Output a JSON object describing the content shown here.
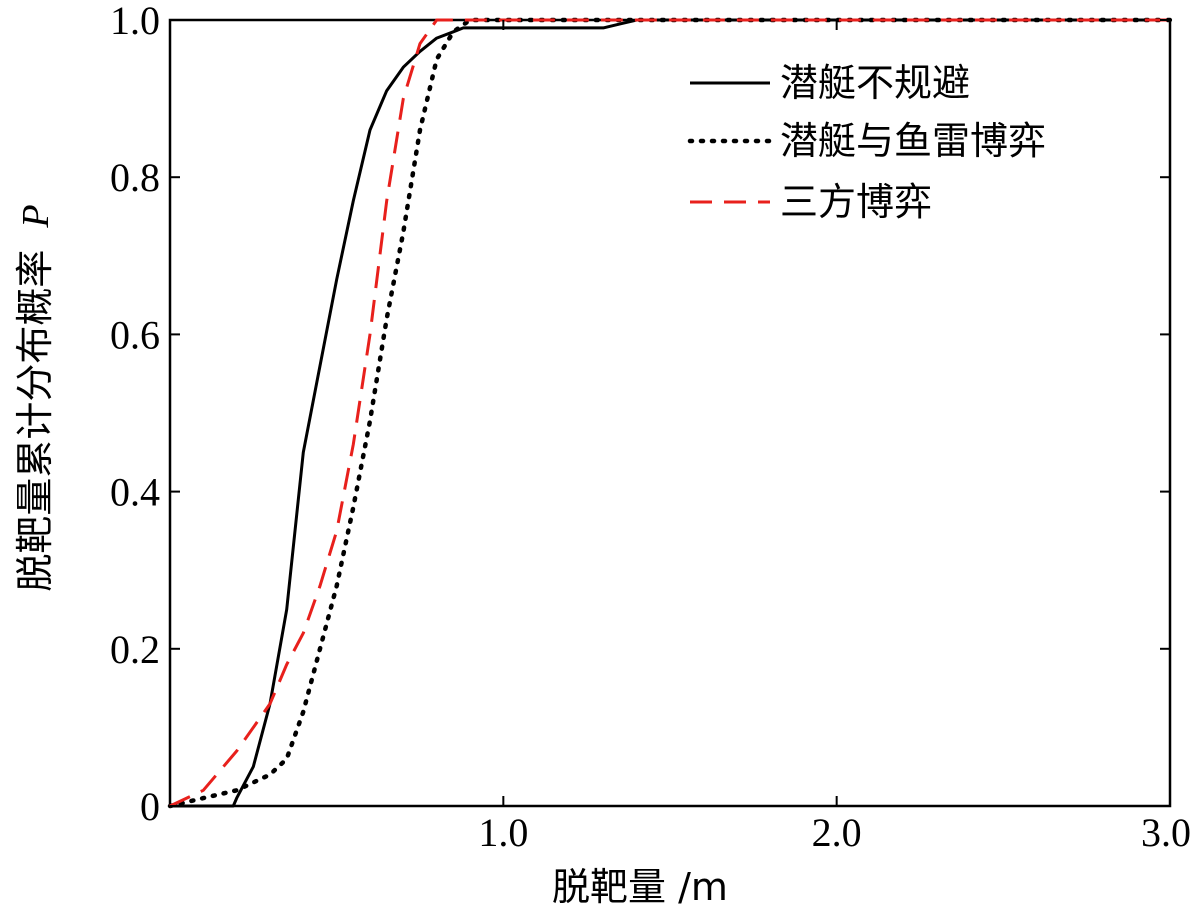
{
  "chart_data": {
    "type": "line",
    "title": "",
    "xlabel": "脱靶量 /m",
    "ylabel": "脱靶量累计分布概率",
    "ylabel_symbol": "P",
    "xlim": [
      0,
      3.0
    ],
    "ylim": [
      0,
      1.0
    ],
    "x_ticks": [
      1.0,
      2.0,
      3.0
    ],
    "x_tick_labels": [
      "1.0",
      "2.0",
      "3.0"
    ],
    "y_ticks": [
      0,
      0.2,
      0.4,
      0.6,
      0.8,
      1.0
    ],
    "y_tick_labels": [
      "0",
      "0.2",
      "0.4",
      "0.6",
      "0.8",
      "1.0"
    ],
    "grid": false,
    "legend_position": "top-right",
    "series": [
      {
        "name": "潜艇不规避",
        "color": "#000000",
        "style": "solid",
        "x": [
          0,
          0.19,
          0.2,
          0.25,
          0.3,
          0.35,
          0.4,
          0.45,
          0.5,
          0.55,
          0.6,
          0.65,
          0.7,
          0.75,
          0.8,
          0.85,
          0.88,
          0.9,
          0.95,
          1.0,
          1.05,
          1.1,
          1.2,
          1.3,
          1.35,
          1.4,
          3.0
        ],
        "y": [
          0,
          0,
          0.01,
          0.05,
          0.13,
          0.25,
          0.45,
          0.56,
          0.67,
          0.77,
          0.86,
          0.91,
          0.94,
          0.96,
          0.977,
          0.985,
          0.99,
          0.99,
          0.99,
          0.99,
          0.99,
          0.99,
          0.99,
          0.99,
          0.995,
          1.0,
          1.0
        ]
      },
      {
        "name": "潜艇与鱼雷博弈",
        "color": "#000000",
        "style": "dotted",
        "x": [
          0,
          0.1,
          0.2,
          0.3,
          0.35,
          0.4,
          0.45,
          0.5,
          0.55,
          0.6,
          0.65,
          0.7,
          0.75,
          0.8,
          0.85,
          0.9,
          0.95,
          1.0,
          1.05,
          1.1,
          1.2,
          1.3,
          1.35,
          3.0
        ],
        "y": [
          0,
          0.01,
          0.02,
          0.04,
          0.06,
          0.12,
          0.2,
          0.28,
          0.38,
          0.49,
          0.62,
          0.73,
          0.86,
          0.95,
          0.985,
          1.0,
          1.0,
          1.0,
          1.0,
          1.0,
          1.0,
          1.0,
          1.0,
          1.0
        ]
      },
      {
        "name": "三方博弈",
        "color": "#e8201c",
        "style": "dashed",
        "x": [
          0,
          0.1,
          0.2,
          0.3,
          0.35,
          0.4,
          0.45,
          0.5,
          0.55,
          0.6,
          0.65,
          0.7,
          0.75,
          0.8,
          0.85,
          0.88,
          0.9,
          0.95,
          1.0,
          1.1,
          1.2,
          1.3,
          1.35,
          3.0
        ],
        "y": [
          0,
          0.02,
          0.07,
          0.13,
          0.18,
          0.22,
          0.28,
          0.35,
          0.46,
          0.6,
          0.77,
          0.9,
          0.97,
          1.0,
          1.0,
          1.0,
          1.0,
          1.0,
          1.0,
          1.0,
          1.0,
          1.0,
          1.0,
          1.0
        ]
      }
    ]
  }
}
